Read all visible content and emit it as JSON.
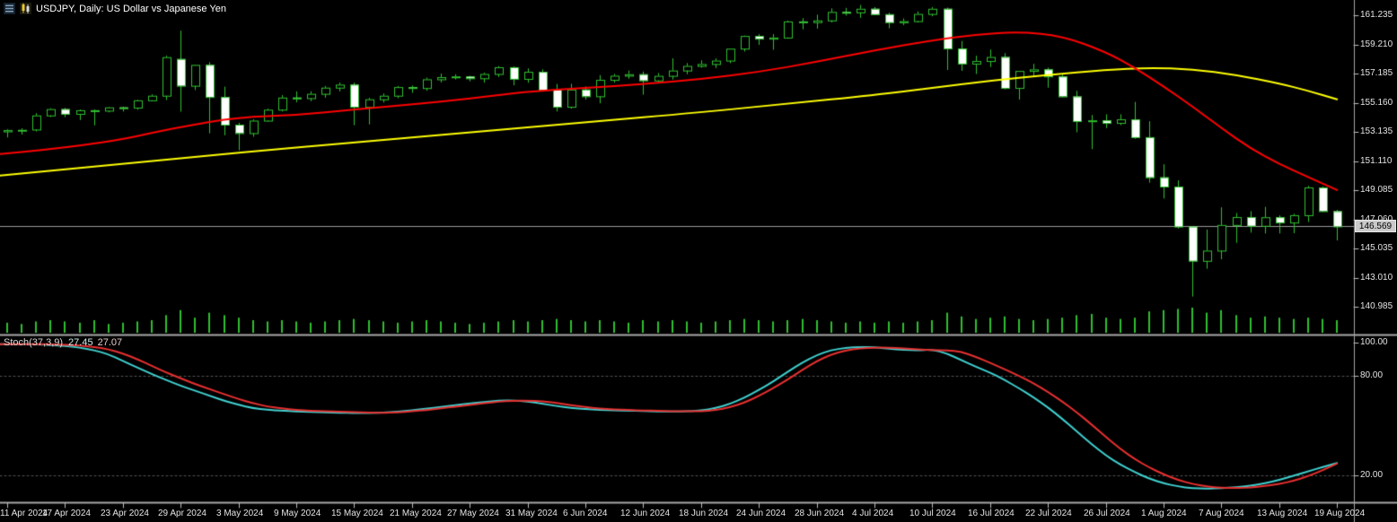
{
  "window": {
    "title": "USDJPY, Daily: US Dollar vs Japanese Yen"
  },
  "chart_data": {
    "type": "candlestick",
    "symbol": "USDJPY",
    "timeframe": "Daily",
    "description": "US Dollar vs Japanese Yen",
    "current_price": "146.569",
    "price_axis_ticks": [
      "161.235",
      "159.210",
      "157.185",
      "155.160",
      "153.135",
      "151.110",
      "149.085",
      "147.060",
      "145.035",
      "143.010",
      "140.985"
    ],
    "ylim": [
      139.1,
      162.3
    ],
    "grid": "off",
    "date_labels": [
      {
        "index": 0,
        "label": "11 Apr 2024"
      },
      {
        "index": 4,
        "label": "17 Apr 2024"
      },
      {
        "index": 8,
        "label": "23 Apr 2024"
      },
      {
        "index": 12,
        "label": "29 Apr 2024"
      },
      {
        "index": 16,
        "label": "3 May 2024"
      },
      {
        "index": 20,
        "label": "9 May 2024"
      },
      {
        "index": 24,
        "label": "15 May 2024"
      },
      {
        "index": 28,
        "label": "21 May 2024"
      },
      {
        "index": 32,
        "label": "27 May 2024"
      },
      {
        "index": 36,
        "label": "31 May 2024"
      },
      {
        "index": 40,
        "label": "6 Jun 2024"
      },
      {
        "index": 44,
        "label": "12 Jun 2024"
      },
      {
        "index": 48,
        "label": "18 Jun 2024"
      },
      {
        "index": 52,
        "label": "24 Jun 2024"
      },
      {
        "index": 56,
        "label": "28 Jun 2024"
      },
      {
        "index": 60,
        "label": "4 Jul 2024"
      },
      {
        "index": 64,
        "label": "10 Jul 2024"
      },
      {
        "index": 68,
        "label": "16 Jul 2024"
      },
      {
        "index": 72,
        "label": "22 Jul 2024"
      },
      {
        "index": 76,
        "label": "26 Jul 2024"
      },
      {
        "index": 80,
        "label": "1 Aug 2024"
      },
      {
        "index": 84,
        "label": "7 Aug 2024"
      },
      {
        "index": 88,
        "label": "13 Aug 2024"
      },
      {
        "index": 92,
        "label": "19 Aug 2024"
      }
    ],
    "candles": [
      [
        153.17,
        153.32,
        152.75,
        153.26
      ],
      [
        153.25,
        153.39,
        152.95,
        153.28
      ],
      [
        153.3,
        154.44,
        153.17,
        154.28
      ],
      [
        154.28,
        154.79,
        154.17,
        154.72
      ],
      [
        154.72,
        154.8,
        154.16,
        154.39
      ],
      [
        154.39,
        154.7,
        153.96,
        154.64
      ],
      [
        154.64,
        154.7,
        153.59,
        154.61
      ],
      [
        154.61,
        154.86,
        154.5,
        154.84
      ],
      [
        154.84,
        154.88,
        154.55,
        154.82
      ],
      [
        154.82,
        155.37,
        154.68,
        155.33
      ],
      [
        155.33,
        155.75,
        155.3,
        155.65
      ],
      [
        155.65,
        158.44,
        155.35,
        158.33
      ],
      [
        158.2,
        160.17,
        154.54,
        156.34
      ],
      [
        156.34,
        157.8,
        156.04,
        157.79
      ],
      [
        157.79,
        157.98,
        153.04,
        155.56
      ],
      [
        155.56,
        156.28,
        152.9,
        153.64
      ],
      [
        153.64,
        153.77,
        151.86,
        153.05
      ],
      [
        153.05,
        154.01,
        152.8,
        153.92
      ],
      [
        153.92,
        154.75,
        153.86,
        154.68
      ],
      [
        154.68,
        155.69,
        154.56,
        155.52
      ],
      [
        155.52,
        155.95,
        155.19,
        155.48
      ],
      [
        155.48,
        155.96,
        155.27,
        155.78
      ],
      [
        155.78,
        156.33,
        155.51,
        156.21
      ],
      [
        156.21,
        156.57,
        155.95,
        156.42
      ],
      [
        156.42,
        156.56,
        153.6,
        154.88
      ],
      [
        154.88,
        155.51,
        153.66,
        155.4
      ],
      [
        155.4,
        155.81,
        155.18,
        155.65
      ],
      [
        155.65,
        156.33,
        155.48,
        156.25
      ],
      [
        156.25,
        156.36,
        155.85,
        156.18
      ],
      [
        156.18,
        156.91,
        155.99,
        156.79
      ],
      [
        156.79,
        157.19,
        156.57,
        156.94
      ],
      [
        156.94,
        157.14,
        156.78,
        156.99
      ],
      [
        156.99,
        157.04,
        156.65,
        156.86
      ],
      [
        156.86,
        157.26,
        156.56,
        157.16
      ],
      [
        157.16,
        157.71,
        156.95,
        157.63
      ],
      [
        157.63,
        157.68,
        156.37,
        156.82
      ],
      [
        156.82,
        157.55,
        156.55,
        157.31
      ],
      [
        157.31,
        157.48,
        155.95,
        156.07
      ],
      [
        156.07,
        156.47,
        154.55,
        154.88
      ],
      [
        154.88,
        156.48,
        154.75,
        156.08
      ],
      [
        156.08,
        156.3,
        155.38,
        155.61
      ],
      [
        155.61,
        157.08,
        155.12,
        156.75
      ],
      [
        156.75,
        157.17,
        156.56,
        157.04
      ],
      [
        157.04,
        157.4,
        156.83,
        157.14
      ],
      [
        157.14,
        157.33,
        155.72,
        156.71
      ],
      [
        156.71,
        157.23,
        156.6,
        157.03
      ],
      [
        157.03,
        158.25,
        156.77,
        157.4
      ],
      [
        157.4,
        157.92,
        157.14,
        157.72
      ],
      [
        157.72,
        158.11,
        157.6,
        157.85
      ],
      [
        157.85,
        158.24,
        157.57,
        158.09
      ],
      [
        158.09,
        158.93,
        157.91,
        158.92
      ],
      [
        158.92,
        159.83,
        158.72,
        159.8
      ],
      [
        159.8,
        159.93,
        159.18,
        159.61
      ],
      [
        159.61,
        159.93,
        158.84,
        159.69
      ],
      [
        159.69,
        160.87,
        159.61,
        160.81
      ],
      [
        160.81,
        161.04,
        160.26,
        160.76
      ],
      [
        160.76,
        161.28,
        160.31,
        160.88
      ],
      [
        160.88,
        161.72,
        160.74,
        161.47
      ],
      [
        161.47,
        161.75,
        161.22,
        161.44
      ],
      [
        161.44,
        161.95,
        161.06,
        161.69
      ],
      [
        161.69,
        161.81,
        161.25,
        161.31
      ],
      [
        161.31,
        161.41,
        160.33,
        160.75
      ],
      [
        160.75,
        161.02,
        160.55,
        160.83
      ],
      [
        160.83,
        161.51,
        160.74,
        161.33
      ],
      [
        161.33,
        161.81,
        161.17,
        161.69
      ],
      [
        161.69,
        161.77,
        157.44,
        158.93
      ],
      [
        158.93,
        159.45,
        157.38,
        157.88
      ],
      [
        157.88,
        158.43,
        157.16,
        158.06
      ],
      [
        158.06,
        158.86,
        157.64,
        158.34
      ],
      [
        158.34,
        158.61,
        156.09,
        156.19
      ],
      [
        156.19,
        157.38,
        155.38,
        157.37
      ],
      [
        157.37,
        157.87,
        156.99,
        157.48
      ],
      [
        157.48,
        157.6,
        156.21,
        156.99
      ],
      [
        156.99,
        157.19,
        155.55,
        155.6
      ],
      [
        155.6,
        155.99,
        153.11,
        153.89
      ],
      [
        153.89,
        154.31,
        151.94,
        153.94
      ],
      [
        153.94,
        154.36,
        153.4,
        153.76
      ],
      [
        153.76,
        154.36,
        153.61,
        154.01
      ],
      [
        154.01,
        155.22,
        152.66,
        152.77
      ],
      [
        152.77,
        153.88,
        149.61,
        149.98
      ],
      [
        149.98,
        150.89,
        148.51,
        149.34
      ],
      [
        149.34,
        149.77,
        146.42,
        146.56
      ],
      [
        146.56,
        146.56,
        141.7,
        144.18
      ],
      [
        144.18,
        146.36,
        143.63,
        144.89
      ],
      [
        144.89,
        147.9,
        144.29,
        146.67
      ],
      [
        146.67,
        147.5,
        145.43,
        147.22
      ],
      [
        147.22,
        147.63,
        146.14,
        146.61
      ],
      [
        146.61,
        147.93,
        146.08,
        147.21
      ],
      [
        147.21,
        147.34,
        146.08,
        146.84
      ],
      [
        146.84,
        147.45,
        146.1,
        147.35
      ],
      [
        147.35,
        149.39,
        146.88,
        149.28
      ],
      [
        149.28,
        149.35,
        147.58,
        147.63
      ],
      [
        147.63,
        147.72,
        145.6,
        146.57
      ]
    ],
    "volumes": [
      4,
      3.5,
      4.5,
      5,
      4.5,
      4,
      5,
      3.5,
      4,
      4.5,
      5,
      7,
      9,
      6,
      8,
      7,
      6,
      5,
      4.5,
      5,
      4.5,
      4,
      4.5,
      5,
      5.5,
      5,
      4.5,
      4,
      4.5,
      5,
      4.5,
      4,
      3.5,
      4,
      4.5,
      5,
      4.5,
      5,
      5.5,
      5,
      4.5,
      5,
      4.5,
      4,
      5,
      4.5,
      5,
      4.5,
      4,
      4.5,
      5,
      5.5,
      5,
      4.5,
      5,
      5.5,
      5,
      4.5,
      4,
      4.5,
      4,
      4.5,
      4,
      4.5,
      5,
      8,
      6.5,
      5.5,
      6,
      6.5,
      5.5,
      5,
      5.5,
      6,
      7,
      7.5,
      6,
      5.5,
      6,
      8.5,
      9,
      9.5,
      10,
      8,
      9,
      7,
      6,
      6.5,
      6,
      5.5,
      6,
      5.5,
      5
    ],
    "ma_red_keypoints": [
      [
        0,
        151.6
      ],
      [
        6,
        152.2
      ],
      [
        12,
        153.5
      ],
      [
        16,
        154.15
      ],
      [
        20,
        154.3
      ],
      [
        24,
        154.7
      ],
      [
        28,
        155.05
      ],
      [
        32,
        155.45
      ],
      [
        36,
        155.95
      ],
      [
        40,
        156.2
      ],
      [
        44,
        156.45
      ],
      [
        48,
        156.8
      ],
      [
        52,
        157.3
      ],
      [
        56,
        158.0
      ],
      [
        60,
        158.8
      ],
      [
        64,
        159.5
      ],
      [
        67,
        159.9
      ],
      [
        70,
        160.1
      ],
      [
        73,
        159.8
      ],
      [
        76,
        158.7
      ],
      [
        78,
        157.6
      ],
      [
        80,
        156.3
      ],
      [
        82,
        154.9
      ],
      [
        84,
        153.4
      ],
      [
        86,
        152.0
      ],
      [
        88,
        150.9
      ],
      [
        90,
        150.0
      ],
      [
        92,
        149.1
      ]
    ],
    "ma_yellow_keypoints": [
      [
        0,
        150.1
      ],
      [
        8,
        150.9
      ],
      [
        16,
        151.7
      ],
      [
        24,
        152.4
      ],
      [
        32,
        153.1
      ],
      [
        40,
        153.8
      ],
      [
        48,
        154.5
      ],
      [
        54,
        155.1
      ],
      [
        60,
        155.7
      ],
      [
        64,
        156.2
      ],
      [
        68,
        156.7
      ],
      [
        72,
        157.1
      ],
      [
        76,
        157.45
      ],
      [
        79,
        157.6
      ],
      [
        82,
        157.5
      ],
      [
        85,
        157.1
      ],
      [
        88,
        156.5
      ],
      [
        90,
        156.0
      ],
      [
        92,
        155.4
      ]
    ],
    "stochastic": {
      "label": "Stoch(37,3,9)",
      "main_value": "27.45",
      "signal_value": "27.07",
      "axis_ticks": [
        "100.00",
        "80.00",
        "20.00"
      ],
      "ylim": [
        0,
        100
      ],
      "levels": [
        80,
        20
      ],
      "main": [
        99,
        99,
        99,
        98.5,
        98,
        97,
        95.5,
        93,
        89,
        85,
        81,
        77.5,
        74,
        71,
        68,
        65,
        62.5,
        60.5,
        59.5,
        59,
        58.5,
        58.2,
        58,
        57.8,
        57.5,
        57.6,
        57.9,
        58.4,
        59.2,
        60.2,
        61.2,
        62.3,
        63.3,
        64.3,
        65,
        65.2,
        64.6,
        63.2,
        61.8,
        60.6,
        60,
        59.5,
        59.2,
        59,
        58.8,
        58.6,
        58.5,
        58.6,
        59.1,
        60.5,
        63,
        66.8,
        71.5,
        76.5,
        82.5,
        88,
        92.5,
        95.5,
        96.8,
        97.4,
        97.2,
        96.3,
        95.6,
        95.4,
        95.8,
        93.5,
        89.5,
        85.5,
        82,
        77.5,
        72.5,
        67,
        61,
        54,
        46.5,
        39,
        32,
        26.5,
        22,
        18,
        15.2,
        13.3,
        12.2,
        12,
        12.3,
        12.8,
        13.8,
        15.2,
        17.2,
        19.8,
        22.4,
        25,
        27.45
      ],
      "signal": [
        99,
        99,
        99,
        99,
        98.7,
        98.3,
        97.5,
        96,
        93.5,
        90,
        86,
        82,
        78.5,
        75,
        72,
        69,
        66,
        63.5,
        61.5,
        60.3,
        59.5,
        59,
        58.7,
        58.4,
        58.1,
        57.8,
        57.7,
        58,
        58.6,
        59.4,
        60.4,
        61.4,
        62.5,
        63.5,
        64.4,
        65,
        65.1,
        64.7,
        63.6,
        62.3,
        61.1,
        60.3,
        59.8,
        59.4,
        59.1,
        58.9,
        58.7,
        58.6,
        58.6,
        59.3,
        61,
        63.8,
        67.8,
        72.5,
        77.8,
        83.5,
        88.8,
        92.8,
        95.3,
        96.5,
        97,
        97,
        96.5,
        95.9,
        95.5,
        95.4,
        94.5,
        91.5,
        87.8,
        84,
        80,
        75.5,
        70.3,
        64.5,
        58,
        50.8,
        43.2,
        36,
        29.8,
        24.8,
        20.6,
        17.2,
        14.8,
        13.2,
        12.5,
        12.3,
        12.7,
        13.5,
        14.8,
        16.7,
        19.5,
        23,
        27.07
      ]
    },
    "colors": {
      "background": "#000000",
      "candle_outline": "#30C030",
      "bull_fill": "#000000",
      "bear_fill": "#FFFFFF",
      "volume": "#2FBF2F",
      "ma_fast": "#FF0000",
      "ma_slow": "#FFFF00",
      "stoch_main": "#40D0D0",
      "stoch_signal": "#E83030",
      "separator": "#A8A8A8",
      "bid_line": "#9A9A9A",
      "axis_text": "#E4E4E4"
    }
  }
}
